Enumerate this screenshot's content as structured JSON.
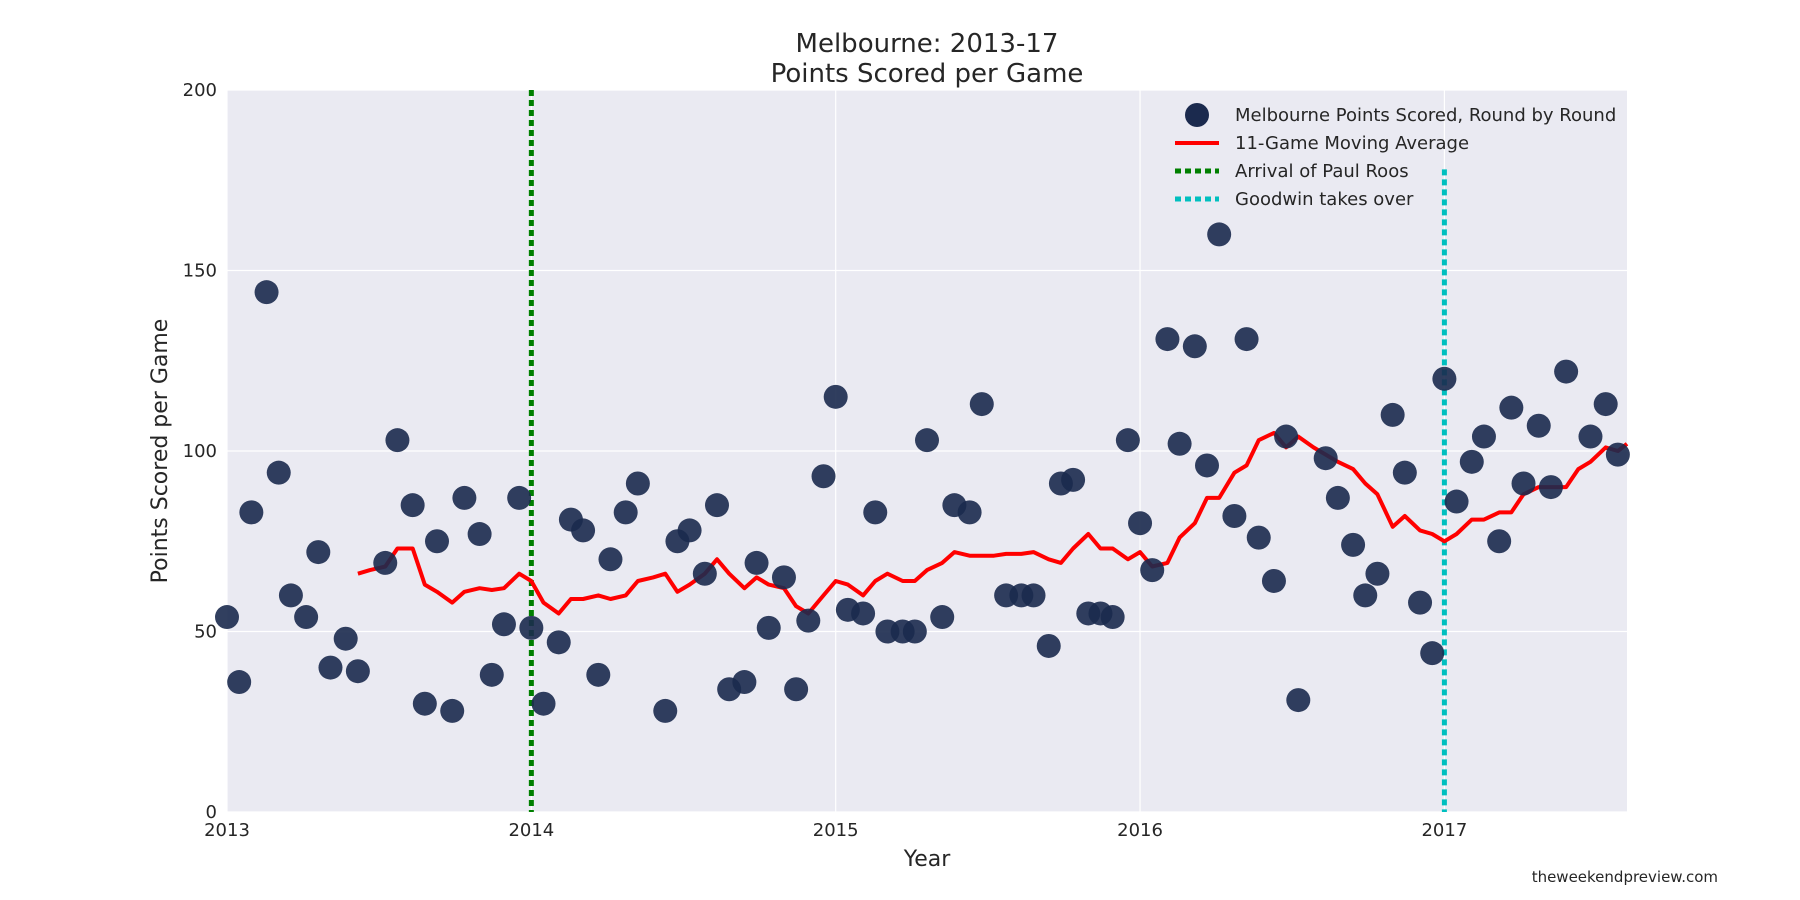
{
  "chart_data": {
    "type": "scatter",
    "title": "Melbourne: 2013-17",
    "subtitle": "Points Scored per Game",
    "xlabel": "Year",
    "ylabel": "Points Scored per Game",
    "xlim": [
      2013.0,
      2017.6
    ],
    "ylim": [
      0,
      200
    ],
    "x_ticks": [
      2013,
      2014,
      2015,
      2016,
      2017
    ],
    "y_ticks": [
      0,
      50,
      100,
      150,
      200
    ],
    "grid": true,
    "legend_position": "top-right",
    "credit": "theweekendpreview.com",
    "colors": {
      "background": "#eaeaf2",
      "grid": "#ffffff",
      "points": "#1b2a4e",
      "moving_average": "#ff0000",
      "paul_roos": "#008000",
      "goodwin": "#00bfbf"
    },
    "legend": [
      {
        "label": "Melbourne Points Scored, Round by Round",
        "kind": "marker",
        "color": "#1b2a4e"
      },
      {
        "label": "11-Game Moving Average",
        "kind": "line",
        "color": "#ff0000"
      },
      {
        "label": "Arrival of Paul Roos",
        "kind": "dotted",
        "color": "#008000"
      },
      {
        "label": "Goodwin takes over",
        "kind": "dotted",
        "color": "#00bfbf"
      }
    ],
    "vlines": [
      {
        "name": "Arrival of Paul Roos",
        "x": 2014.0,
        "y_top": 200,
        "color": "#008000"
      },
      {
        "name": "Goodwin takes over",
        "x": 2017.0,
        "y_top": 178,
        "color": "#00bfbf"
      }
    ],
    "series": [
      {
        "name": "Melbourne Points Scored, Round by Round",
        "points": [
          [
            2013.0,
            54
          ],
          [
            2013.04,
            36
          ],
          [
            2013.08,
            83
          ],
          [
            2013.13,
            144
          ],
          [
            2013.17,
            94
          ],
          [
            2013.21,
            60
          ],
          [
            2013.26,
            54
          ],
          [
            2013.3,
            72
          ],
          [
            2013.34,
            40
          ],
          [
            2013.39,
            48
          ],
          [
            2013.43,
            39
          ],
          [
            2013.52,
            69
          ],
          [
            2013.56,
            103
          ],
          [
            2013.61,
            85
          ],
          [
            2013.65,
            30
          ],
          [
            2013.69,
            75
          ],
          [
            2013.74,
            28
          ],
          [
            2013.78,
            87
          ],
          [
            2013.83,
            77
          ],
          [
            2013.87,
            38
          ],
          [
            2013.91,
            52
          ],
          [
            2013.96,
            87
          ],
          [
            2014.0,
            51
          ],
          [
            2014.04,
            30
          ],
          [
            2014.09,
            47
          ],
          [
            2014.13,
            81
          ],
          [
            2014.17,
            78
          ],
          [
            2014.22,
            38
          ],
          [
            2014.26,
            70
          ],
          [
            2014.31,
            83
          ],
          [
            2014.35,
            91
          ],
          [
            2014.44,
            28
          ],
          [
            2014.48,
            75
          ],
          [
            2014.52,
            78
          ],
          [
            2014.57,
            66
          ],
          [
            2014.61,
            85
          ],
          [
            2014.65,
            34
          ],
          [
            2014.7,
            36
          ],
          [
            2014.74,
            69
          ],
          [
            2014.78,
            51
          ],
          [
            2014.83,
            65
          ],
          [
            2014.87,
            34
          ],
          [
            2014.91,
            53
          ],
          [
            2014.96,
            93
          ],
          [
            2015.0,
            115
          ],
          [
            2015.04,
            56
          ],
          [
            2015.09,
            55
          ],
          [
            2015.13,
            83
          ],
          [
            2015.17,
            50
          ],
          [
            2015.22,
            50
          ],
          [
            2015.26,
            50
          ],
          [
            2015.3,
            103
          ],
          [
            2015.35,
            54
          ],
          [
            2015.39,
            85
          ],
          [
            2015.44,
            83
          ],
          [
            2015.48,
            113
          ],
          [
            2015.56,
            60
          ],
          [
            2015.61,
            60
          ],
          [
            2015.65,
            60
          ],
          [
            2015.7,
            46
          ],
          [
            2015.74,
            91
          ],
          [
            2015.78,
            92
          ],
          [
            2015.83,
            55
          ],
          [
            2015.87,
            55
          ],
          [
            2015.91,
            54
          ],
          [
            2015.96,
            103
          ],
          [
            2016.0,
            80
          ],
          [
            2016.04,
            67
          ],
          [
            2016.09,
            131
          ],
          [
            2016.13,
            102
          ],
          [
            2016.18,
            129
          ],
          [
            2016.22,
            96
          ],
          [
            2016.26,
            160
          ],
          [
            2016.31,
            82
          ],
          [
            2016.35,
            131
          ],
          [
            2016.39,
            76
          ],
          [
            2016.44,
            64
          ],
          [
            2016.48,
            104
          ],
          [
            2016.52,
            31
          ],
          [
            2016.61,
            98
          ],
          [
            2016.65,
            87
          ],
          [
            2016.7,
            74
          ],
          [
            2016.74,
            60
          ],
          [
            2016.78,
            66
          ],
          [
            2016.83,
            110
          ],
          [
            2016.87,
            94
          ],
          [
            2016.92,
            58
          ],
          [
            2016.96,
            44
          ],
          [
            2017.0,
            120
          ],
          [
            2017.04,
            86
          ],
          [
            2017.09,
            97
          ],
          [
            2017.13,
            104
          ],
          [
            2017.18,
            75
          ],
          [
            2017.22,
            112
          ],
          [
            2017.26,
            91
          ],
          [
            2017.31,
            107
          ],
          [
            2017.35,
            90
          ],
          [
            2017.4,
            122
          ],
          [
            2017.48,
            104
          ],
          [
            2017.53,
            113
          ],
          [
            2017.57,
            99
          ]
        ]
      },
      {
        "name": "11-Game Moving Average",
        "points": [
          [
            2013.43,
            66
          ],
          [
            2013.47,
            67
          ],
          [
            2013.52,
            68
          ],
          [
            2013.56,
            73
          ],
          [
            2013.61,
            73
          ],
          [
            2013.65,
            63
          ],
          [
            2013.69,
            61
          ],
          [
            2013.74,
            58
          ],
          [
            2013.78,
            61
          ],
          [
            2013.83,
            62
          ],
          [
            2013.87,
            61.5
          ],
          [
            2013.91,
            62
          ],
          [
            2013.96,
            66
          ],
          [
            2014.0,
            64
          ],
          [
            2014.04,
            58
          ],
          [
            2014.09,
            55
          ],
          [
            2014.13,
            59
          ],
          [
            2014.17,
            59
          ],
          [
            2014.22,
            60
          ],
          [
            2014.26,
            59
          ],
          [
            2014.31,
            60
          ],
          [
            2014.35,
            64
          ],
          [
            2014.4,
            65
          ],
          [
            2014.44,
            66
          ],
          [
            2014.48,
            61
          ],
          [
            2014.52,
            63
          ],
          [
            2014.57,
            66
          ],
          [
            2014.61,
            70
          ],
          [
            2014.65,
            66
          ],
          [
            2014.7,
            62
          ],
          [
            2014.74,
            65
          ],
          [
            2014.78,
            63
          ],
          [
            2014.83,
            62
          ],
          [
            2014.87,
            57
          ],
          [
            2014.91,
            55
          ],
          [
            2014.96,
            60
          ],
          [
            2015.0,
            64
          ],
          [
            2015.04,
            63
          ],
          [
            2015.09,
            60
          ],
          [
            2015.13,
            64
          ],
          [
            2015.17,
            66
          ],
          [
            2015.22,
            64
          ],
          [
            2015.26,
            64
          ],
          [
            2015.3,
            67
          ],
          [
            2015.35,
            69
          ],
          [
            2015.39,
            72
          ],
          [
            2015.44,
            71
          ],
          [
            2015.48,
            71
          ],
          [
            2015.52,
            71
          ],
          [
            2015.56,
            71.5
          ],
          [
            2015.61,
            71.5
          ],
          [
            2015.65,
            72
          ],
          [
            2015.7,
            70
          ],
          [
            2015.74,
            69
          ],
          [
            2015.78,
            73
          ],
          [
            2015.83,
            77
          ],
          [
            2015.87,
            73
          ],
          [
            2015.91,
            73
          ],
          [
            2015.96,
            70
          ],
          [
            2016.0,
            72
          ],
          [
            2016.04,
            68
          ],
          [
            2016.09,
            69
          ],
          [
            2016.13,
            76
          ],
          [
            2016.18,
            80
          ],
          [
            2016.22,
            87
          ],
          [
            2016.26,
            87
          ],
          [
            2016.31,
            94
          ],
          [
            2016.35,
            96
          ],
          [
            2016.39,
            103
          ],
          [
            2016.44,
            105
          ],
          [
            2016.48,
            101
          ],
          [
            2016.52,
            104
          ],
          [
            2016.57,
            101
          ],
          [
            2016.61,
            99
          ],
          [
            2016.65,
            97
          ],
          [
            2016.7,
            95
          ],
          [
            2016.74,
            91
          ],
          [
            2016.78,
            88
          ],
          [
            2016.83,
            79
          ],
          [
            2016.87,
            82
          ],
          [
            2016.92,
            78
          ],
          [
            2016.96,
            77
          ],
          [
            2017.0,
            75
          ],
          [
            2017.04,
            77
          ],
          [
            2017.09,
            81
          ],
          [
            2017.13,
            81
          ],
          [
            2017.18,
            83
          ],
          [
            2017.22,
            83
          ],
          [
            2017.26,
            88
          ],
          [
            2017.31,
            90
          ],
          [
            2017.35,
            90
          ],
          [
            2017.4,
            90
          ],
          [
            2017.44,
            95
          ],
          [
            2017.48,
            97
          ],
          [
            2017.53,
            101
          ],
          [
            2017.57,
            100
          ],
          [
            2017.6,
            102
          ]
        ]
      }
    ]
  }
}
